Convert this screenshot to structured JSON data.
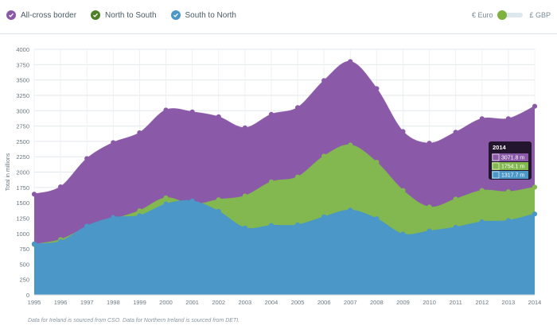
{
  "legend": [
    {
      "label": "All-cross border",
      "color": "#8a5aa8",
      "icon": "check-icon"
    },
    {
      "label": "North to South",
      "color": "#4f7f26",
      "icon": "check-icon"
    },
    {
      "label": "South to North",
      "color": "#4a97c8",
      "icon": "check-icon"
    }
  ],
  "currency": {
    "left_label": "€ Euro",
    "right_label": "£ GBP",
    "selected": "€ Euro"
  },
  "footnote": "Data for Ireland is sourced from CSO. Data for Northern Ireland is sourced from DETI.",
  "colors": {
    "all": "#8a5aa8",
    "ns": "#82b84f",
    "sn": "#4a97c8",
    "grid": "#e3e8ec",
    "tooltip_bg": "#1a1024"
  },
  "chart_data": {
    "type": "area",
    "x": [
      1995,
      1996,
      1997,
      1998,
      1999,
      2000,
      2001,
      2002,
      2003,
      2004,
      2005,
      2006,
      2007,
      2008,
      2009,
      2010,
      2011,
      2012,
      2013,
      2014
    ],
    "ylabel": "Total in millions",
    "ylim": [
      0,
      4000
    ],
    "yticks": [
      0,
      250,
      500,
      750,
      1000,
      1250,
      1500,
      1750,
      2000,
      2250,
      2500,
      2750,
      3000,
      3250,
      3500,
      3750,
      4000
    ],
    "grid": true,
    "series": [
      {
        "name": "All-cross border",
        "color": "#8a5aa8",
        "values": [
          1640,
          1760,
          2220,
          2480,
          2640,
          3010,
          2980,
          2900,
          2720,
          2940,
          3050,
          3490,
          3800,
          3360,
          2660,
          2470,
          2650,
          2870,
          2870,
          3071.8
        ]
      },
      {
        "name": "North to South",
        "color": "#82b84f",
        "values": [
          820,
          900,
          1100,
          1230,
          1370,
          1580,
          1470,
          1550,
          1610,
          1840,
          1920,
          2260,
          2440,
          2160,
          1700,
          1430,
          1560,
          1700,
          1680,
          1754.1
        ]
      },
      {
        "name": "South to North",
        "color": "#4a97c8",
        "values": [
          830,
          870,
          1120,
          1260,
          1290,
          1480,
          1530,
          1360,
          1090,
          1130,
          1140,
          1270,
          1380,
          1240,
          990,
          1040,
          1100,
          1190,
          1210,
          1317.7
        ]
      }
    ],
    "tooltip": {
      "title": "2014",
      "rows": [
        {
          "color": "#8a5aa8",
          "text": "3071.8 m"
        },
        {
          "color": "#82b84f",
          "text": "1754.1 m"
        },
        {
          "color": "#4a97c8",
          "text": "1317.7 m"
        }
      ]
    }
  }
}
